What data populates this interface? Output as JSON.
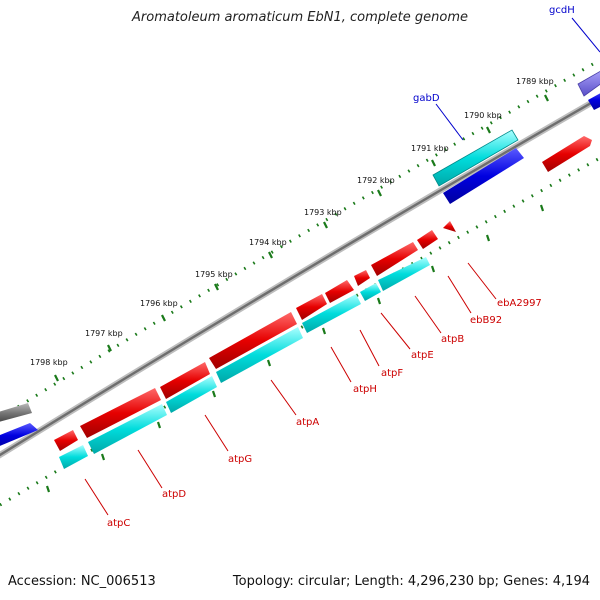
{
  "title": "Aromatoleum aromaticum EbN1, complete genome",
  "footer": {
    "accession": "Accession: NC_006513",
    "topology": "Topology: circular; Length: 4,296,230 bp; Genes: 4,194"
  },
  "colors": {
    "backbone": "#808080",
    "forward_gene": "#e60000",
    "reverse_gene": "#00d0d0",
    "forward_cds_blue": "#0000e0",
    "tick": "#1a7a1a",
    "label_red": "#cc0000",
    "label_blue": "#0000cc"
  },
  "diagram": {
    "kbp_labels": [
      "1789 kbp",
      "1790 kbp",
      "1791 kbp",
      "1792 kbp",
      "1793 kbp",
      "1794 kbp",
      "1795 kbp",
      "1796 kbp",
      "1797 kbp",
      "1798 kbp"
    ],
    "gene_labels": [
      {
        "name": "gcdH",
        "color": "blue"
      },
      {
        "name": "gabD",
        "color": "blue"
      },
      {
        "name": "ebA2997",
        "color": "red"
      },
      {
        "name": "ebB92",
        "color": "red"
      },
      {
        "name": "atpB",
        "color": "red"
      },
      {
        "name": "atpE",
        "color": "red"
      },
      {
        "name": "atpF",
        "color": "red"
      },
      {
        "name": "atpH",
        "color": "red"
      },
      {
        "name": "atpA",
        "color": "red"
      },
      {
        "name": "atpG",
        "color": "red"
      },
      {
        "name": "atpD",
        "color": "red"
      },
      {
        "name": "atpC",
        "color": "red"
      }
    ]
  }
}
